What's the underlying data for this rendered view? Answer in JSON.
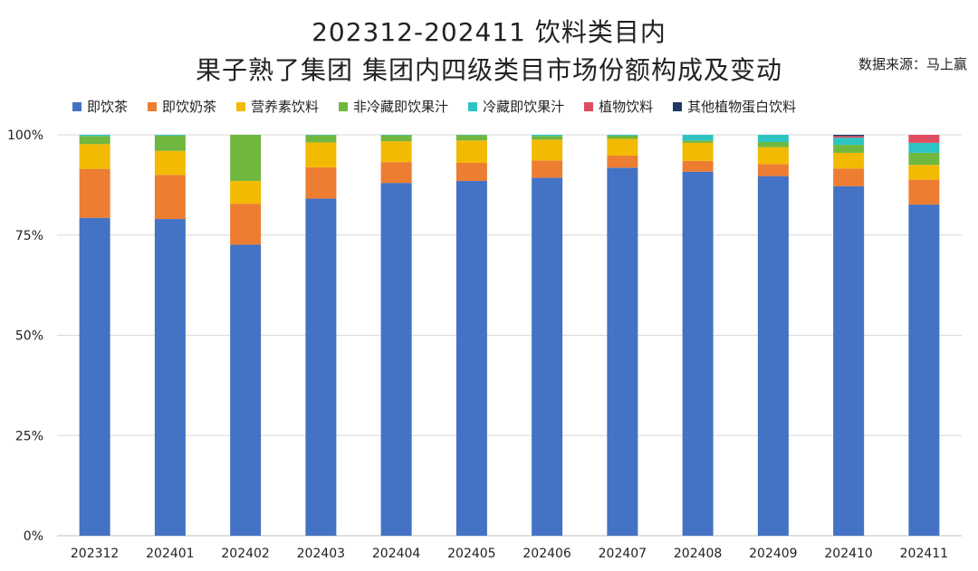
{
  "header": {
    "title_line1": "202312-202411 饮料类目内",
    "title_line2": "果子熟了集团 集团内四级类目市场份额构成及变动",
    "source": "数据来源：马上赢"
  },
  "colors": {
    "即饮茶": "#4472C4",
    "即饮奶茶": "#ED7D31",
    "营养素饮料": "#F2BA02",
    "非冷藏即饮果汁": "#70B73F",
    "冷藏即饮果汁": "#2EC4C4",
    "植物饮料": "#E04B5F",
    "其他植物蛋白饮料": "#1F3864"
  },
  "chart_data": {
    "type": "bar",
    "stacked": true,
    "title": "202312-202411 饮料类目内 果子熟了集团 集团内四级类目市场份额构成及变动",
    "categories": [
      "202312",
      "202401",
      "202402",
      "202403",
      "202404",
      "202405",
      "202406",
      "202407",
      "202408",
      "202409",
      "202410",
      "202411"
    ],
    "y_ticks": [
      "100%",
      "75%",
      "50%",
      "25%",
      "0%"
    ],
    "ylim": [
      0,
      100
    ],
    "grid": true,
    "legend_position": "top",
    "series": [
      {
        "name": "即饮茶",
        "values": [
          79.3,
          79.0,
          72.6,
          84.1,
          88.0,
          88.5,
          89.3,
          91.8,
          90.8,
          89.7,
          87.2,
          82.6
        ]
      },
      {
        "name": "即饮奶茶",
        "values": [
          12.2,
          11.0,
          10.2,
          7.8,
          5.2,
          4.5,
          4.3,
          3.0,
          2.7,
          3.0,
          4.4,
          6.2
        ]
      },
      {
        "name": "营养素饮料",
        "values": [
          6.2,
          6.0,
          5.7,
          6.2,
          5.2,
          5.6,
          5.2,
          4.2,
          4.5,
          4.2,
          3.9,
          3.7
        ]
      },
      {
        "name": "非冷藏即饮果汁",
        "values": [
          2.0,
          3.8,
          11.5,
          1.8,
          1.5,
          1.3,
          0.9,
          0.8,
          0.6,
          1.3,
          2.0,
          3.0
        ]
      },
      {
        "name": "冷藏即饮果汁",
        "values": [
          0.3,
          0.2,
          0.0,
          0.1,
          0.1,
          0.1,
          0.3,
          0.2,
          1.4,
          1.8,
          1.8,
          2.5
        ]
      },
      {
        "name": "植物饮料",
        "values": [
          0.0,
          0.0,
          0.0,
          0.0,
          0.0,
          0.0,
          0.0,
          0.0,
          0.0,
          0.0,
          0.4,
          2.0
        ]
      },
      {
        "name": "其他植物蛋白饮料",
        "values": [
          0.0,
          0.0,
          0.0,
          0.0,
          0.0,
          0.0,
          0.0,
          0.0,
          0.0,
          0.0,
          0.3,
          0.0
        ]
      }
    ]
  }
}
